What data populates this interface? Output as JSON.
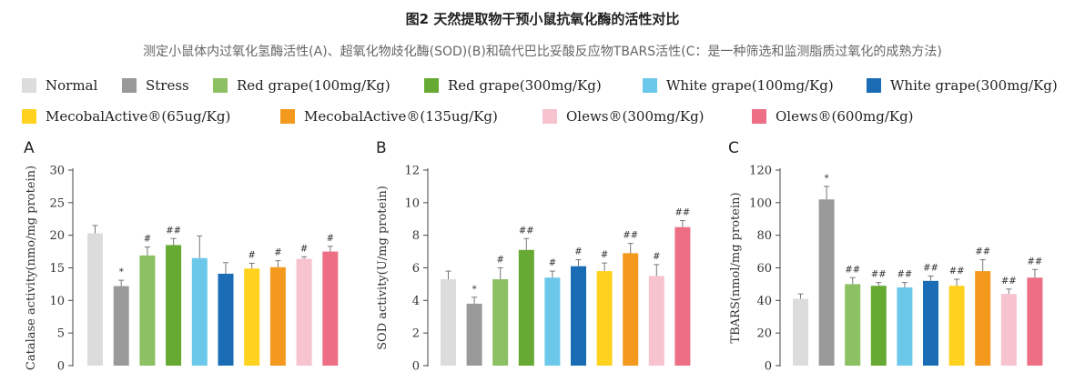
{
  "title": "图2 天然提取物干预小鼠抗氧化酶的活性对比",
  "subtitle": "测定小鼠体内过氧化氢酶活性(A)、超氧化物歧化酶(SOD)(B)和硫代巴比妥酸反应物TBARS活性(C：是一种筛选和监测脂质过氧化的成熟方法)",
  "legend": [
    {
      "label": "Normal",
      "color": "#dcdcdc"
    },
    {
      "label": "Stress",
      "color": "#999999"
    },
    {
      "label": "Red grape(100mg/Kg)",
      "color": "#8cc063"
    },
    {
      "label": "Red grape(300mg/Kg)",
      "color": "#66aa33"
    },
    {
      "label": "White grape(100mg/Kg)",
      "color": "#6cc8ea"
    },
    {
      "label": "White grape(300mg/Kg)",
      "color": "#1a6db5"
    },
    {
      "label": "MecobalActive®(65ug/Kg)",
      "color": "#ffd21f"
    },
    {
      "label": "MecobalActive®(135ug/Kg)",
      "color": "#f39a1e"
    },
    {
      "label": "Olews®(300mg/Kg)",
      "color": "#f7c3cf"
    },
    {
      "label": "Olews®(600mg/Kg)",
      "color": "#ec6f86"
    }
  ],
  "chart_data": [
    {
      "type": "bar",
      "panel": "A",
      "ylabel": "Catalase activity(nmo/mg protein)",
      "ylim": [
        0,
        30
      ],
      "yticks": [
        0,
        5,
        10,
        15,
        20,
        25,
        30
      ],
      "categories": [
        "Normal",
        "Stress",
        "Red grape(100mg/Kg)",
        "Red grape(300mg/Kg)",
        "White grape(100mg/Kg)",
        "White grape(300mg/Kg)",
        "MecobalActive®(65ug/Kg)",
        "MecobalActive®(135ug/Kg)",
        "Olews®(300mg/Kg)",
        "Olews®(600mg/Kg)"
      ],
      "values": [
        20.3,
        12.2,
        16.9,
        18.5,
        16.5,
        14.1,
        14.9,
        15.1,
        16.4,
        17.5
      ],
      "errors": [
        1.2,
        0.9,
        1.3,
        1.0,
        3.4,
        1.7,
        0.8,
        1.0,
        0.3,
        0.8
      ],
      "significance": [
        "",
        "*",
        "#",
        "##",
        "",
        "",
        "#",
        "#",
        "#",
        "#"
      ]
    },
    {
      "type": "bar",
      "panel": "B",
      "ylabel": "SOD activity(U/mg protein)",
      "ylim": [
        0,
        12
      ],
      "yticks": [
        0,
        2,
        4,
        6,
        8,
        10,
        12
      ],
      "categories": [
        "Normal",
        "Stress",
        "Red grape(100mg/Kg)",
        "Red grape(300mg/Kg)",
        "White grape(100mg/Kg)",
        "White grape(300mg/Kg)",
        "MecobalActive®(65ug/Kg)",
        "MecobalActive®(135ug/Kg)",
        "Olews®(300mg/Kg)",
        "Olews®(600mg/Kg)"
      ],
      "values": [
        5.3,
        3.8,
        5.3,
        7.1,
        5.4,
        6.1,
        5.8,
        6.9,
        5.5,
        8.5
      ],
      "errors": [
        0.5,
        0.4,
        0.7,
        0.7,
        0.4,
        0.4,
        0.5,
        0.6,
        0.7,
        0.4
      ],
      "significance": [
        "",
        "*",
        "#",
        "##",
        "#",
        "#",
        "#",
        "##",
        "#",
        "##"
      ]
    },
    {
      "type": "bar",
      "panel": "C",
      "ylabel": "TBARS(nmol/mg protein)",
      "ylim": [
        0,
        120
      ],
      "yticks": [
        0,
        20,
        40,
        60,
        80,
        100,
        120
      ],
      "categories": [
        "Normal",
        "Stress",
        "Red grape(100mg/Kg)",
        "Red grape(300mg/Kg)",
        "White grape(100mg/Kg)",
        "White grape(300mg/Kg)",
        "MecobalActive®(65ug/Kg)",
        "MecobalActive®(135ug/Kg)",
        "Olews®(300mg/Kg)",
        "Olews®(600mg/Kg)"
      ],
      "values": [
        41,
        102,
        50,
        49,
        48,
        52,
        49,
        58,
        44,
        54
      ],
      "errors": [
        3,
        8,
        4,
        2,
        3,
        3,
        4,
        7,
        3,
        5
      ],
      "significance": [
        "",
        "*",
        "##",
        "##",
        "##",
        "##",
        "##",
        "##",
        "##",
        "##"
      ]
    }
  ]
}
